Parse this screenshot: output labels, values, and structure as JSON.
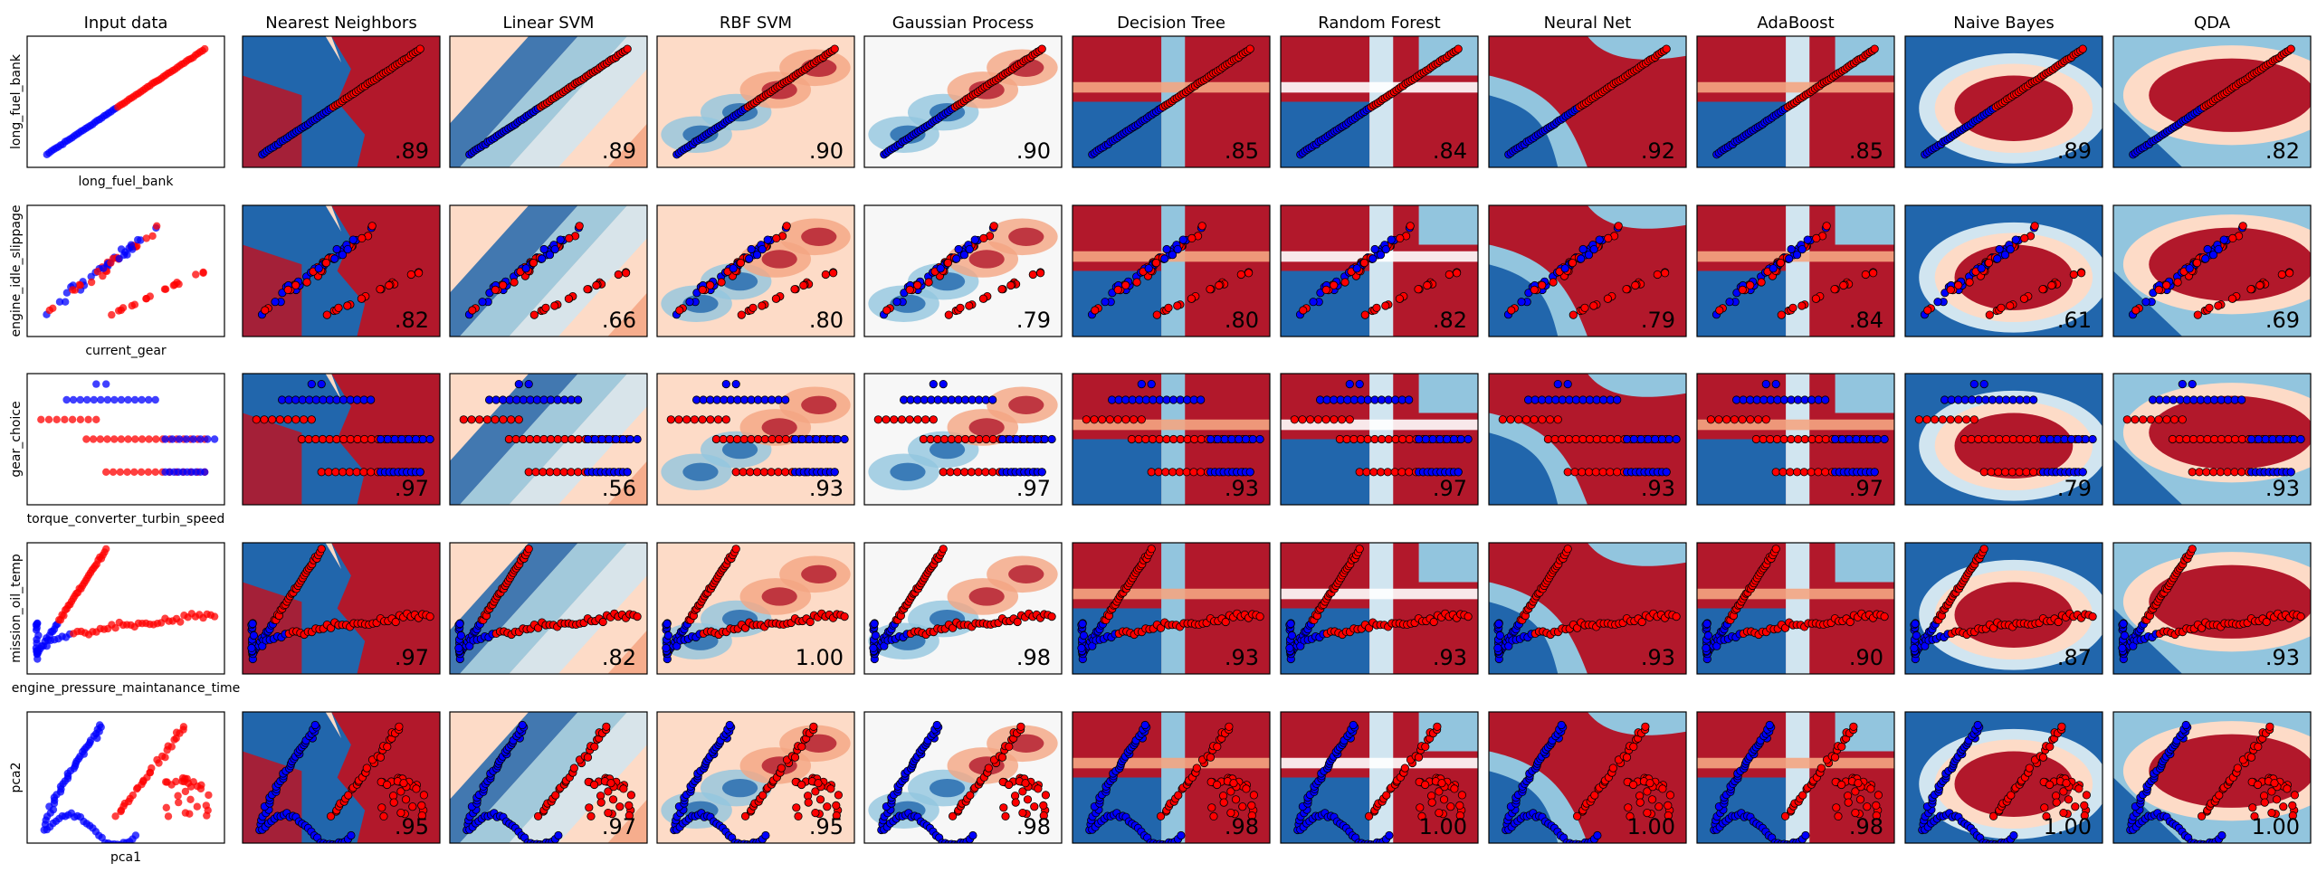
{
  "colors": {
    "red_class": "#ff0000",
    "blue_class": "#0000ff",
    "red_region": "#b2182b",
    "blue_region": "#2166ac",
    "neutral_region": "#f7f7f7"
  },
  "chart_data": {
    "type": "classifier-comparison-grid",
    "columns": [
      "Input data",
      "Nearest Neighbors",
      "Linear SVM",
      "RBF SVM",
      "Gaussian Process",
      "Decision Tree",
      "Random Forest",
      "Neural Net",
      "AdaBoost",
      "Naive Bayes",
      "QDA"
    ],
    "rows": [
      {
        "xlabel": "long_fuel_bank",
        "ylabel": "long_fuel_bank",
        "dataset": "diagonal",
        "scores": [
          ".89",
          ".89",
          ".90",
          ".90",
          ".85",
          ".84",
          ".92",
          ".85",
          ".89",
          ".82"
        ]
      },
      {
        "xlabel": "current_gear",
        "ylabel": "engine_idle_slippage",
        "dataset": "two-branch",
        "scores": [
          ".82",
          ".66",
          ".80",
          ".79",
          ".80",
          ".82",
          ".79",
          ".84",
          ".61",
          ".69"
        ]
      },
      {
        "xlabel": "torque_converter_turbin_speed",
        "ylabel": "gear_choice",
        "dataset": "horizontal-bands",
        "scores": [
          ".97",
          ".56",
          ".93",
          ".97",
          ".93",
          ".97",
          ".93",
          ".97",
          ".79",
          ".93"
        ]
      },
      {
        "xlabel": "engine_pressure_maintanance_time",
        "ylabel": "mission_oil_temp",
        "dataset": "hockey-stick",
        "scores": [
          ".97",
          ".82",
          "1.00",
          ".98",
          ".93",
          ".93",
          ".93",
          ".90",
          ".87",
          ".93"
        ]
      },
      {
        "xlabel": "pca1",
        "ylabel": "pca2",
        "dataset": "pca-curves",
        "scores": [
          ".95",
          ".97",
          ".95",
          ".98",
          ".98",
          "1.00",
          "1.00",
          ".98",
          "1.00",
          "1.00"
        ]
      }
    ]
  }
}
